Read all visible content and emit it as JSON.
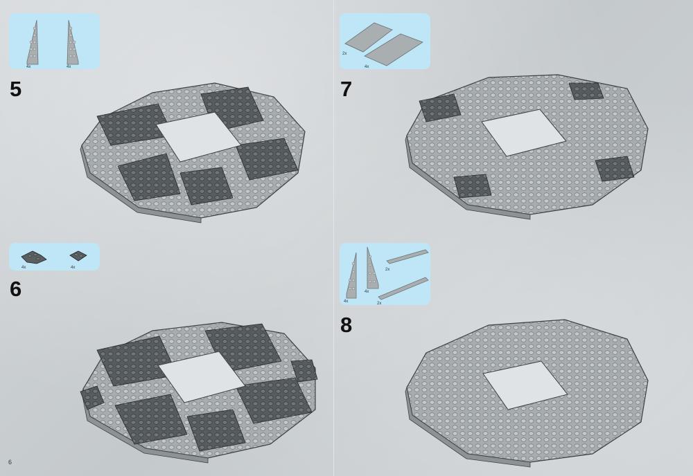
{
  "steps": [
    {
      "number": "5",
      "parts": [
        {
          "qty": "4x"
        },
        {
          "qty": "4x"
        }
      ]
    },
    {
      "number": "6",
      "parts": [
        {
          "qty": "4x"
        },
        {
          "qty": "4x"
        }
      ]
    },
    {
      "number": "7",
      "parts": [
        {
          "qty": "2x"
        },
        {
          "qty": "4x"
        }
      ]
    },
    {
      "number": "8",
      "parts": [
        {
          "qty": "4x"
        },
        {
          "qty": "4x"
        },
        {
          "qty": "2x"
        },
        {
          "qty": "2x"
        }
      ]
    }
  ],
  "page_number": "6",
  "colors": {
    "callout": "#bfe6f7",
    "light_gray_plate": "#a8adaf",
    "dark_gray_plate": "#5a5f61",
    "stud_light": "#c2c6c8",
    "stud_dark": "#6f7476"
  }
}
